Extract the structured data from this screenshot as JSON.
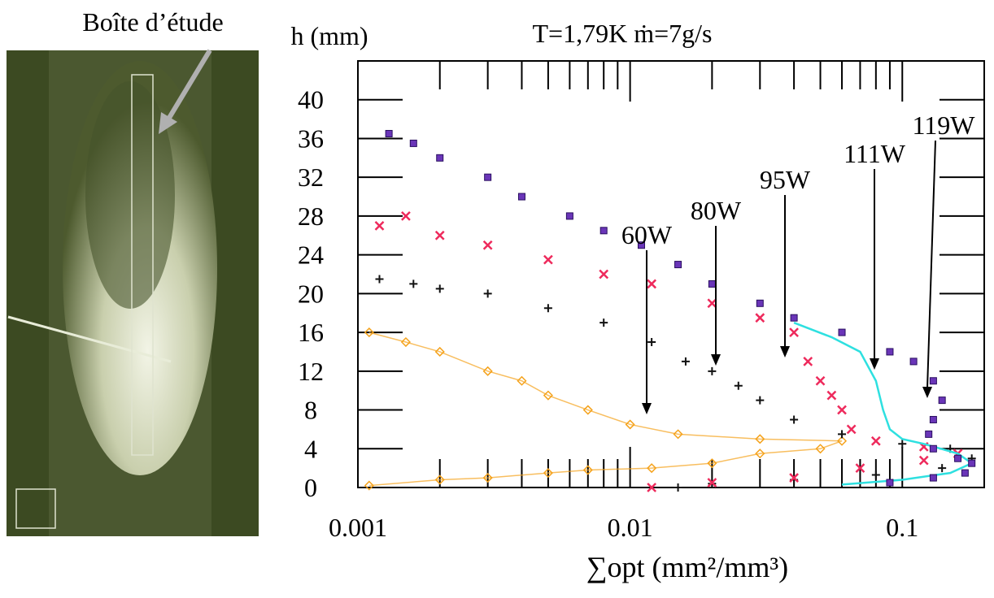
{
  "photo": {
    "label": "Boîte d’étude"
  },
  "chart_data": {
    "type": "scatter",
    "title": "T=1,79K ṁ=7g/s",
    "y_label": "h (mm)",
    "x_label": "∑opt (mm²/mm³)",
    "x_log": true,
    "xlim": [
      0.001,
      0.2
    ],
    "ylim": [
      0,
      44
    ],
    "xticks": [
      0.001,
      0.01,
      0.1
    ],
    "xminorticks": [
      0.002,
      0.003,
      0.004,
      0.005,
      0.006,
      0.007,
      0.008,
      0.009,
      0.02,
      0.03,
      0.04,
      0.05,
      0.06,
      0.07,
      0.08,
      0.09,
      0.2
    ],
    "yticks": [
      0,
      4,
      8,
      12,
      16,
      20,
      24,
      28,
      32,
      36,
      40
    ],
    "series": [
      {
        "name": "60W",
        "color": "#f5a21b",
        "marker": "diamond",
        "x": [
          0.0011,
          0.0015,
          0.002,
          0.003,
          0.004,
          0.005,
          0.007,
          0.01,
          0.015,
          0.03,
          0.06,
          0.05,
          0.03,
          0.02,
          0.012,
          0.007,
          0.005,
          0.003,
          0.002,
          0.0011
        ],
        "values": [
          16,
          15,
          14,
          12,
          11,
          9.5,
          8,
          6.5,
          5.5,
          5,
          4.8,
          4,
          3.5,
          2.5,
          2,
          1.8,
          1.5,
          1,
          0.8,
          0.2
        ]
      },
      {
        "name": "80W",
        "color": "#111111",
        "marker": "plus",
        "x": [
          0.0012,
          0.0016,
          0.002,
          0.003,
          0.005,
          0.008,
          0.012,
          0.016,
          0.02,
          0.025,
          0.03,
          0.04,
          0.06,
          0.1,
          0.15,
          0.18,
          0.14,
          0.08,
          0.04,
          0.02,
          0.015
        ],
        "values": [
          21.5,
          21,
          20.5,
          20,
          18.5,
          17,
          15,
          13,
          12,
          10.5,
          9,
          7,
          5.5,
          4.5,
          4,
          3,
          2,
          1.3,
          0.8,
          0.4,
          0
        ]
      },
      {
        "name": "95W",
        "color": "#ee2a5c",
        "marker": "cross",
        "x": [
          0.0012,
          0.0015,
          0.002,
          0.003,
          0.005,
          0.008,
          0.012,
          0.02,
          0.03,
          0.04,
          0.045,
          0.05,
          0.055,
          0.06,
          0.065,
          0.08,
          0.12,
          0.16,
          0.12,
          0.07,
          0.04,
          0.02,
          0.012
        ],
        "values": [
          27,
          28,
          26,
          25,
          23.5,
          22,
          21,
          19,
          17.5,
          16,
          13,
          11,
          9.5,
          8,
          6,
          4.8,
          4.2,
          3.5,
          2.8,
          2,
          1,
          0.5,
          0
        ]
      },
      {
        "name": "111W",
        "color": "#2ee0e0",
        "marker": "line",
        "x": [
          0.04,
          0.055,
          0.07,
          0.08,
          0.085,
          0.09,
          0.1,
          0.12,
          0.16,
          0.18,
          0.15,
          0.1,
          0.06
        ],
        "values": [
          17,
          15.5,
          14,
          11,
          8,
          6,
          5,
          4.5,
          3.5,
          2.5,
          1.5,
          0.8,
          0.3
        ]
      },
      {
        "name": "119W",
        "color": "#6a35b8",
        "marker": "square",
        "x": [
          0.0013,
          0.0016,
          0.002,
          0.003,
          0.004,
          0.006,
          0.008,
          0.011,
          0.015,
          0.02,
          0.03,
          0.04,
          0.06,
          0.09,
          0.11,
          0.13,
          0.14,
          0.13,
          0.125,
          0.13,
          0.16,
          0.18,
          0.17,
          0.13,
          0.09
        ],
        "values": [
          36.5,
          35.5,
          34,
          32,
          30,
          28,
          26.5,
          25,
          23,
          21,
          19,
          17.5,
          16,
          14,
          13,
          11,
          9,
          7,
          5.5,
          4,
          3,
          2.5,
          1.5,
          1,
          0.5
        ]
      }
    ]
  }
}
